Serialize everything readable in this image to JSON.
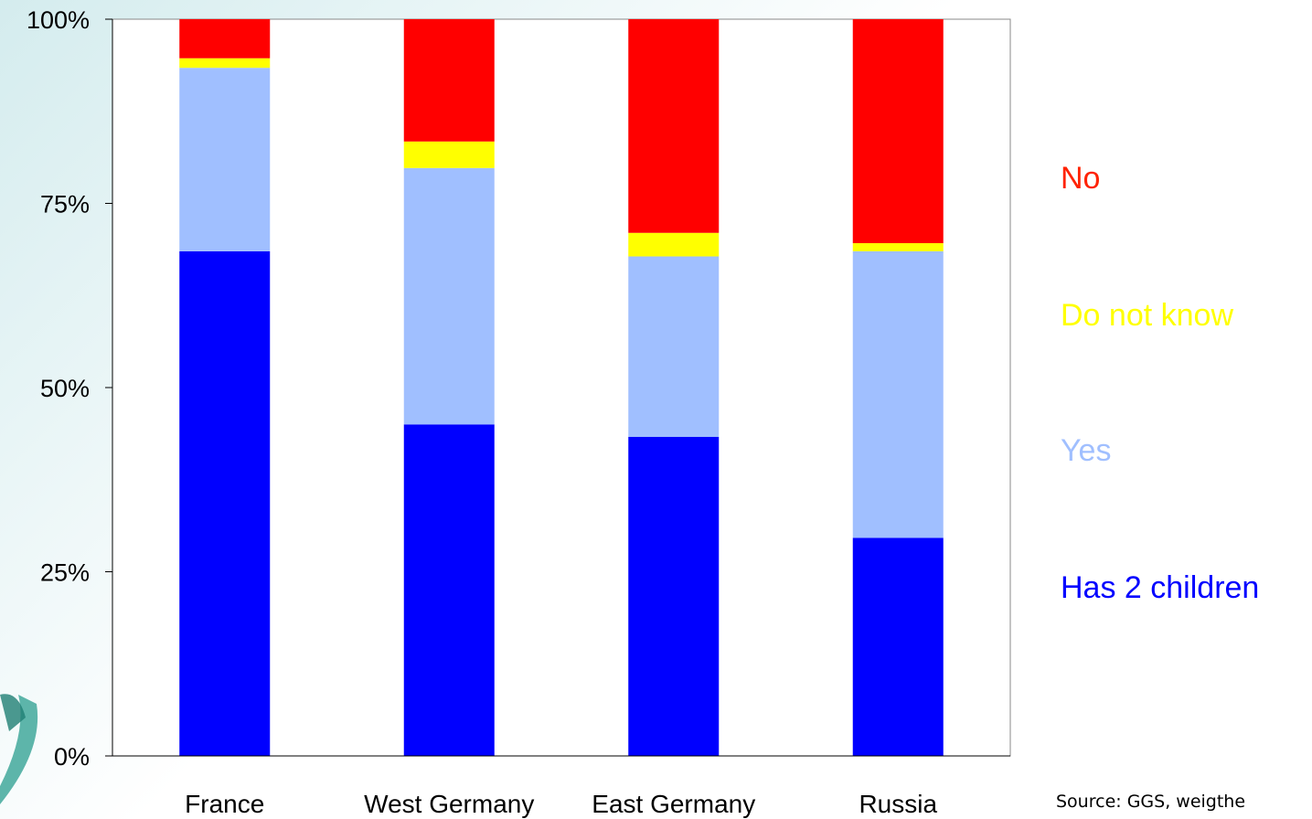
{
  "chart_data": {
    "type": "bar",
    "stacked": true,
    "percent": true,
    "categories": [
      "France",
      "West Germany",
      "East Germany",
      "Russia"
    ],
    "series": [
      {
        "name": "Has 2 children",
        "color": "#0000ff",
        "values": [
          68.5,
          45,
          43.3,
          29.6
        ]
      },
      {
        "name": "Yes",
        "color": "#a0bfff",
        "values": [
          24.9,
          34.8,
          24.5,
          38.9
        ]
      },
      {
        "name": "Do not know",
        "color": "#ffff00",
        "values": [
          1.3,
          3.6,
          3.2,
          1.1
        ]
      },
      {
        "name": "No",
        "color": "#ff0000",
        "values": [
          5.3,
          16.6,
          29.0,
          30.4
        ]
      }
    ],
    "yticks": [
      "0%",
      "25%",
      "50%",
      "75%",
      "100%"
    ],
    "ylim": [
      0,
      100
    ],
    "legend_position": "right",
    "plot_background": "#ffffff"
  },
  "legend": {
    "items": [
      {
        "label": "No",
        "color": "#ff2200"
      },
      {
        "label": "Do not know",
        "color": "#ffff00"
      },
      {
        "label": "Yes",
        "color": "#a0bfff"
      },
      {
        "label": "Has 2 children",
        "color": "#0000ff"
      }
    ]
  },
  "source": "Source: GGS, weigthe"
}
